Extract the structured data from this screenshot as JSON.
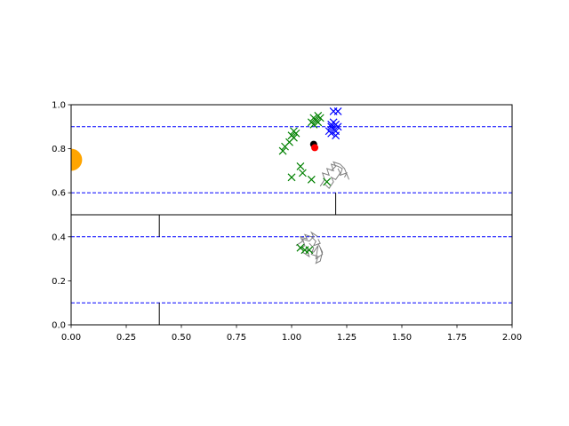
{
  "chart_data": {
    "type": "scatter",
    "title": "",
    "xlabel": "",
    "ylabel": "",
    "xlim": [
      0.0,
      2.0
    ],
    "ylim": [
      0.0,
      1.0
    ],
    "xticks": [
      0.0,
      0.25,
      0.5,
      0.75,
      1.0,
      1.25,
      1.5,
      1.75,
      2.0
    ],
    "xtick_labels": [
      "0.00",
      "0.25",
      "0.50",
      "0.75",
      "1.00",
      "1.25",
      "1.50",
      "1.75",
      "2.00"
    ],
    "yticks": [
      0.0,
      0.2,
      0.4,
      0.6,
      0.8,
      1.0
    ],
    "ytick_labels": [
      "0.0",
      "0.2",
      "0.4",
      "0.6",
      "0.8",
      "1.0"
    ],
    "grid": false,
    "legend": "none",
    "colors": {
      "dashed_lines": "#0000ff",
      "walls": "#000000",
      "green_markers": "#008000",
      "blue_markers": "#0000ff",
      "trajectories": "#808080",
      "black_point": "#000000",
      "red_point": "#ff0000",
      "orange_circle": "#ffa500"
    },
    "horizontal_dashed_lines": [
      0.9,
      0.6,
      0.4,
      0.1
    ],
    "walls": [
      {
        "x": [
          0.0,
          2.0
        ],
        "y": [
          0.5,
          0.5
        ]
      },
      {
        "x": [
          0.4,
          0.4
        ],
        "y": [
          0.5,
          0.4
        ]
      },
      {
        "x": [
          1.2,
          1.2
        ],
        "y": [
          0.5,
          0.6
        ]
      },
      {
        "x": [
          0.4,
          0.4
        ],
        "y": [
          0.0,
          0.1
        ]
      }
    ],
    "orange_circle": {
      "x": 0.0,
      "y": 0.75,
      "radius": 0.05
    },
    "black_point": {
      "x": 1.1,
      "y": 0.82
    },
    "red_point": {
      "x": 1.105,
      "y": 0.805
    },
    "green_markers": [
      {
        "x": 0.96,
        "y": 0.79
      },
      {
        "x": 0.97,
        "y": 0.81
      },
      {
        "x": 0.99,
        "y": 0.83
      },
      {
        "x": 1.0,
        "y": 0.86
      },
      {
        "x": 1.01,
        "y": 0.88
      },
      {
        "x": 1.02,
        "y": 0.87
      },
      {
        "x": 1.01,
        "y": 0.85
      },
      {
        "x": 1.09,
        "y": 0.92
      },
      {
        "x": 1.1,
        "y": 0.91
      },
      {
        "x": 1.11,
        "y": 0.93
      },
      {
        "x": 1.12,
        "y": 0.95
      },
      {
        "x": 1.1,
        "y": 0.94
      },
      {
        "x": 1.12,
        "y": 0.92
      },
      {
        "x": 1.13,
        "y": 0.94
      },
      {
        "x": 1.0,
        "y": 0.67
      },
      {
        "x": 1.04,
        "y": 0.72
      },
      {
        "x": 1.05,
        "y": 0.69
      },
      {
        "x": 1.09,
        "y": 0.66
      },
      {
        "x": 1.16,
        "y": 0.65
      },
      {
        "x": 1.04,
        "y": 0.35
      },
      {
        "x": 1.06,
        "y": 0.34
      },
      {
        "x": 1.08,
        "y": 0.34
      }
    ],
    "blue_markers": [
      {
        "x": 1.17,
        "y": 0.88
      },
      {
        "x": 1.18,
        "y": 0.87
      },
      {
        "x": 1.18,
        "y": 0.9
      },
      {
        "x": 1.19,
        "y": 0.89
      },
      {
        "x": 1.19,
        "y": 0.92
      },
      {
        "x": 1.2,
        "y": 0.91
      },
      {
        "x": 1.2,
        "y": 0.88
      },
      {
        "x": 1.21,
        "y": 0.9
      },
      {
        "x": 1.2,
        "y": 0.86
      },
      {
        "x": 1.18,
        "y": 0.91
      },
      {
        "x": 1.21,
        "y": 0.97
      },
      {
        "x": 1.19,
        "y": 0.97
      }
    ],
    "trajectories": [
      {
        "x": [
          1.13,
          1.15,
          1.14,
          1.17,
          1.16,
          1.19,
          1.18,
          1.21,
          1.23,
          1.22,
          1.25,
          1.24
        ],
        "y": [
          0.63,
          0.66,
          0.69,
          0.68,
          0.71,
          0.7,
          0.73,
          0.72,
          0.71,
          0.68,
          0.69,
          0.67
        ]
      },
      {
        "x": [
          1.15,
          1.17,
          1.19,
          1.18,
          1.2,
          1.22,
          1.21
        ],
        "y": [
          0.64,
          0.62,
          0.65,
          0.67,
          0.66,
          0.69,
          0.71
        ]
      },
      {
        "x": [
          1.18,
          1.2,
          1.19,
          1.22,
          1.24,
          1.26
        ],
        "y": [
          0.7,
          0.72,
          0.74,
          0.73,
          0.71,
          0.66
        ]
      },
      {
        "x": [
          1.02,
          1.05,
          1.04,
          1.07,
          1.06,
          1.09,
          1.11,
          1.1,
          1.13,
          1.12
        ],
        "y": [
          0.36,
          0.38,
          0.4,
          0.39,
          0.41,
          0.4,
          0.38,
          0.36,
          0.37,
          0.39
        ]
      },
      {
        "x": [
          1.05,
          1.08,
          1.07,
          1.1,
          1.12,
          1.11,
          1.14,
          1.13
        ],
        "y": [
          0.33,
          0.31,
          0.34,
          0.33,
          0.36,
          0.3,
          0.32,
          0.35
        ]
      },
      {
        "x": [
          1.08,
          1.1,
          1.09,
          1.12,
          1.11,
          1.13,
          1.14,
          1.12
        ],
        "y": [
          0.37,
          0.35,
          0.32,
          0.31,
          0.28,
          0.29,
          0.33,
          0.37
        ]
      },
      {
        "x": [
          1.03,
          1.06,
          1.05,
          1.08,
          1.1,
          1.09,
          1.12
        ],
        "y": [
          0.34,
          0.36,
          0.39,
          0.38,
          0.4,
          0.42,
          0.4
        ]
      }
    ]
  }
}
